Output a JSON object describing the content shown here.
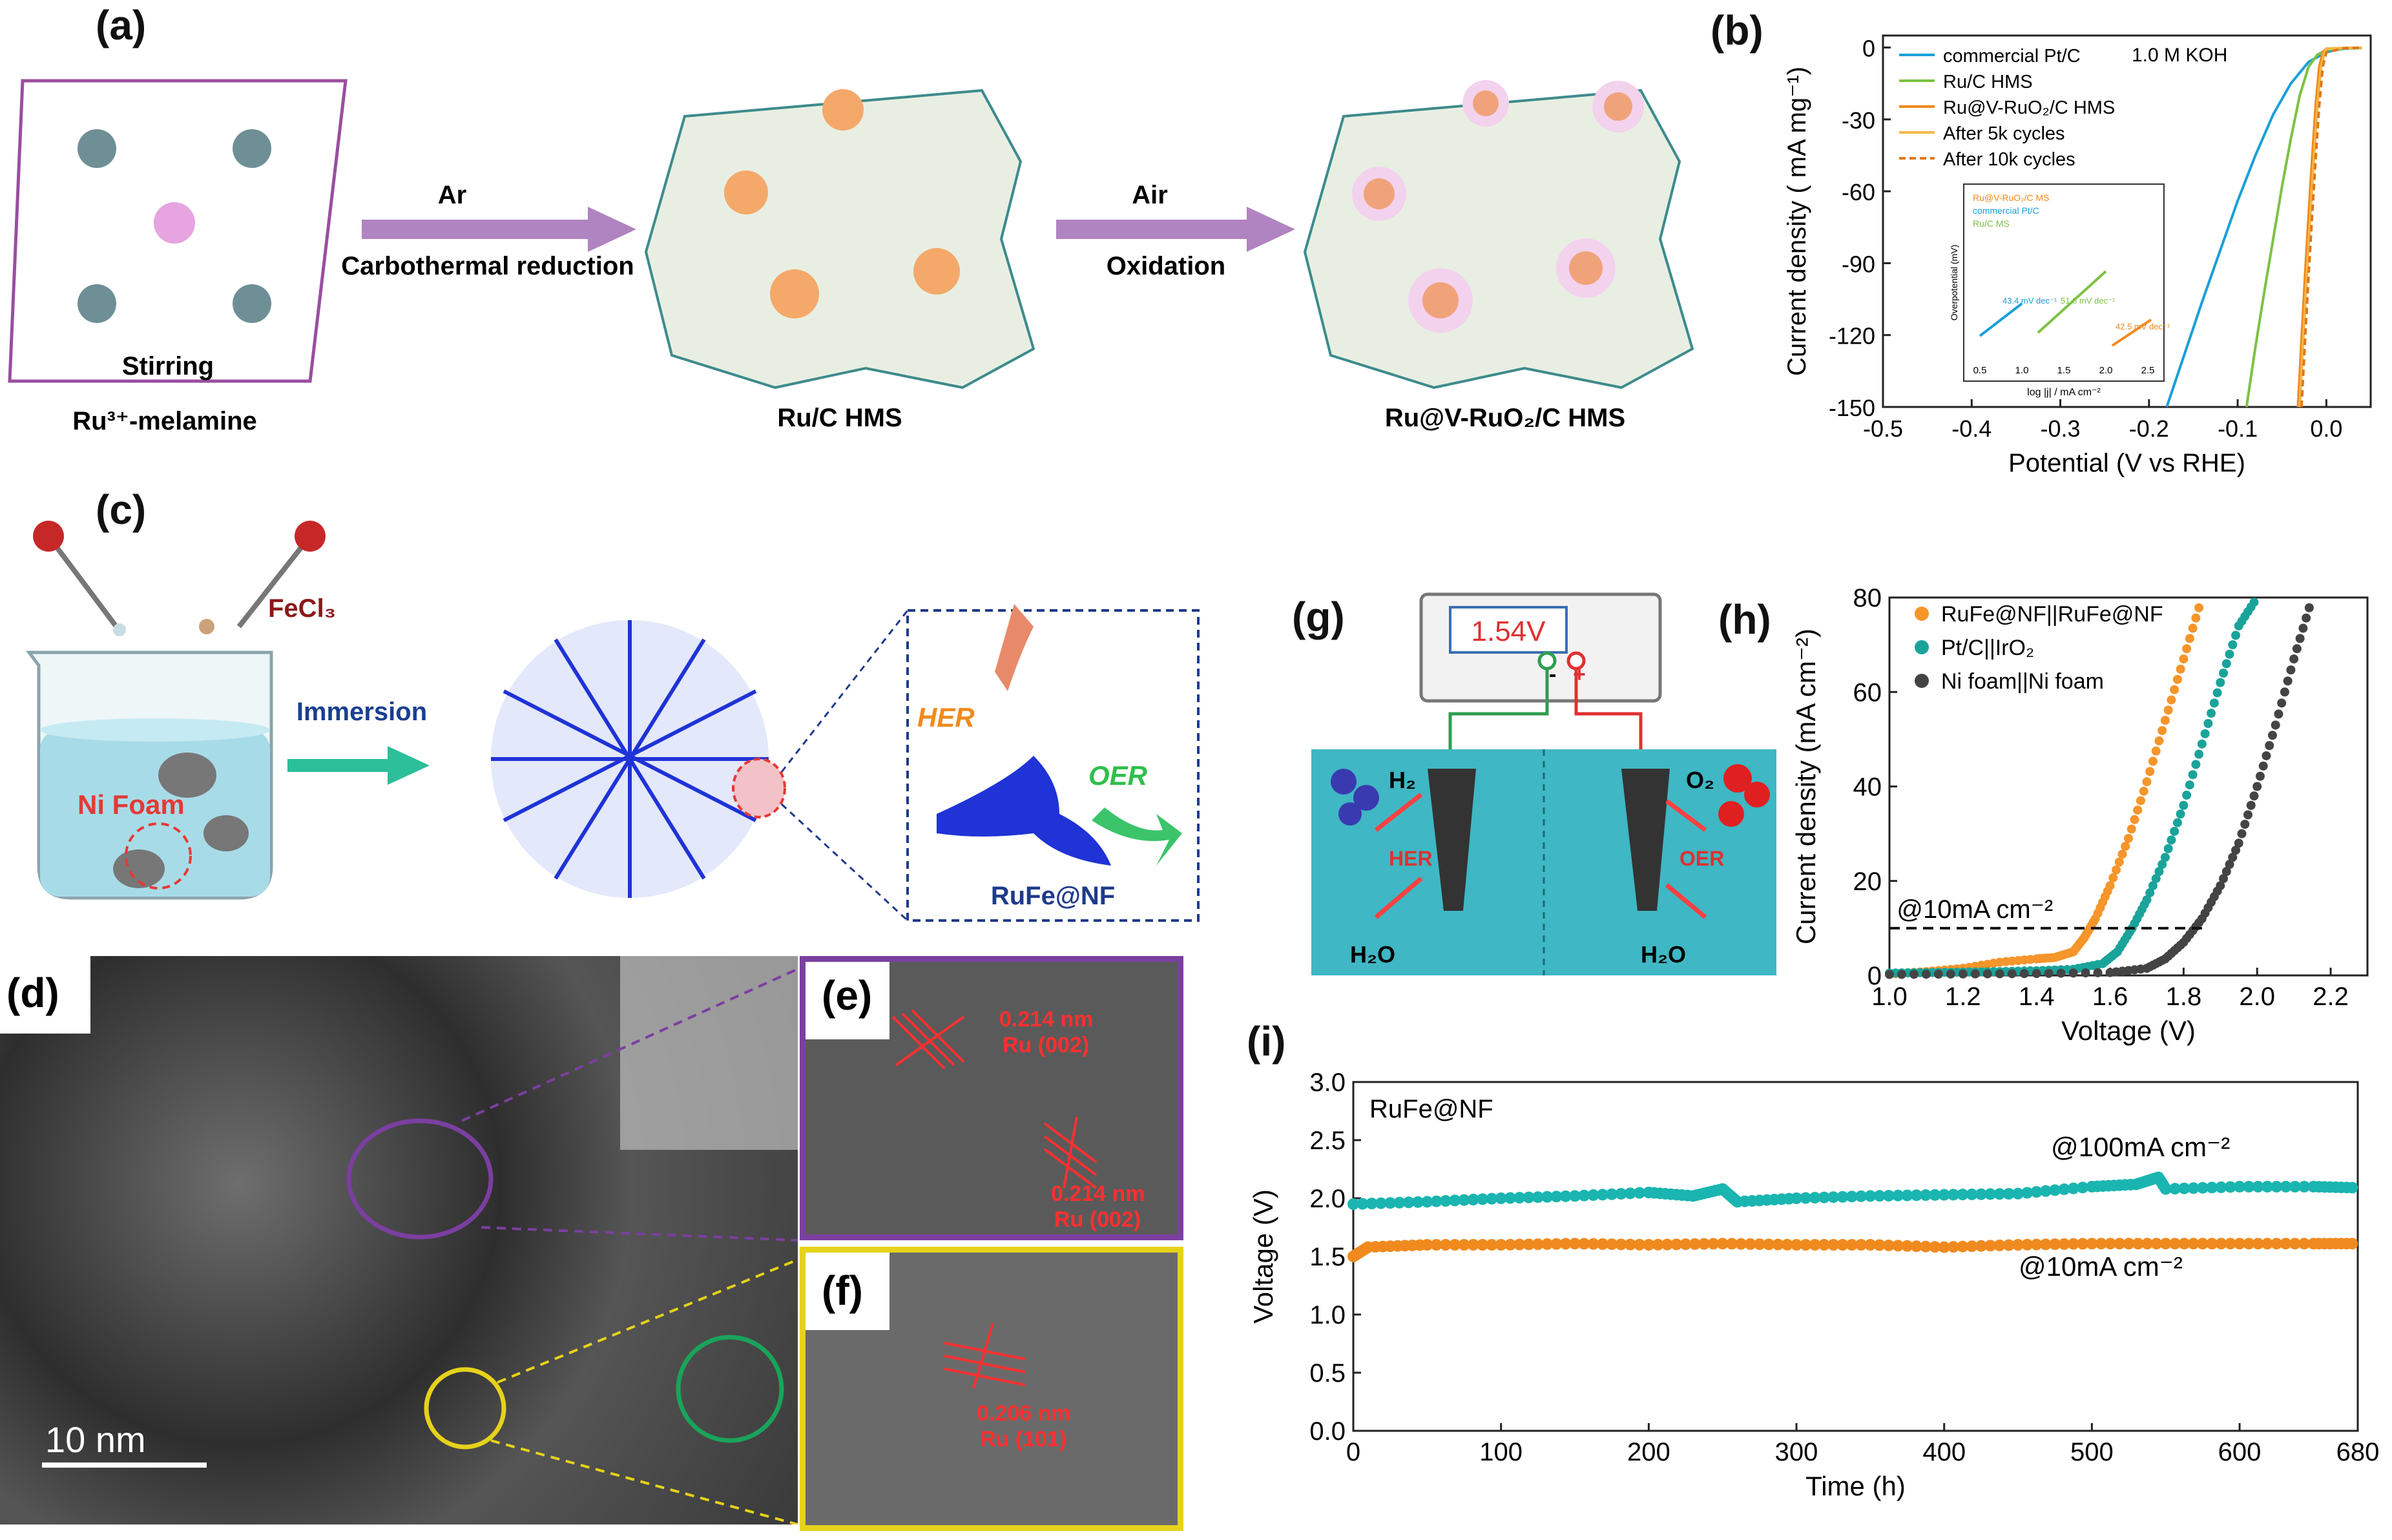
{
  "labels": {
    "a": "(a)",
    "b": "(b)",
    "c": "(c)",
    "d": "(d)",
    "e": "(e)",
    "f": "(f)",
    "g": "(g)",
    "h": "(h)",
    "i": "(i)"
  },
  "panel_a": {
    "stirring": "Stirring",
    "precursor": "Ru³⁺-melamine",
    "arrow1_top": "Ar",
    "arrow1_bottom": "Carbothermal reduction",
    "product1": "Ru/C HMS",
    "arrow2_top": "Air",
    "arrow2_bottom": "Oxidation",
    "product2": "Ru@V-RuO₂/C HMS"
  },
  "panel_c": {
    "reagent": "FeCl₃",
    "foam": "Ni Foam",
    "arrow": "Immersion",
    "her": "HER",
    "oer": "OER",
    "product": "RuFe@NF"
  },
  "panel_d": {
    "scale": "10  nm"
  },
  "panel_e": {
    "l1a": "0.214 nm",
    "l1b": "Ru (002)",
    "l2a": "0.214 nm",
    "l2b": "Ru (002)"
  },
  "panel_f": {
    "l1a": "0.206 nm",
    "l1b": "Ru (101)"
  },
  "panel_g": {
    "voltage": "1.54V",
    "minus": "-",
    "plus": "+",
    "h2": "H₂",
    "o2": "O₂",
    "her": "HER",
    "oer": "OER",
    "h2o_left": "H₂O",
    "h2o_right": "H₂O",
    "colors": {
      "water": "#3fb7c4",
      "wire_left": "#2e9e4f",
      "wire_right": "#e03030"
    }
  },
  "chart_data": [
    {
      "id": "b",
      "type": "line",
      "xlabel": "Potential (V vs RHE)",
      "ylabel": "Current density ( mA mg⁻¹)",
      "annotation": "1.0 M KOH",
      "xlim": [
        -0.5,
        0.05
      ],
      "ylim": [
        -150,
        5
      ],
      "xticks": [
        -0.5,
        -0.4,
        -0.3,
        -0.2,
        -0.1,
        0.0
      ],
      "xtick_labels": [
        "-0.5",
        "-0.4",
        "-0.3",
        "-0.2",
        "-0.1",
        "0.0"
      ],
      "yticks": [
        0,
        -30,
        -60,
        -90,
        -120,
        -150
      ],
      "ytick_labels": [
        "0",
        "-30",
        "-60",
        "-90",
        "-120",
        "-150"
      ],
      "series": [
        {
          "name": "commercial Pt/C",
          "color": "#1a9fd9",
          "x": [
            -0.18,
            -0.16,
            -0.14,
            -0.12,
            -0.1,
            -0.08,
            -0.06,
            -0.04,
            -0.02,
            0.0,
            0.01,
            0.02,
            0.04
          ],
          "y": [
            -150,
            -128,
            -106,
            -85,
            -64,
            -45,
            -28,
            -15,
            -6,
            -2,
            -1,
            -0.5,
            -0.2
          ]
        },
        {
          "name": "Ru/C HMS",
          "color": "#7cc242",
          "x": [
            -0.09,
            -0.08,
            -0.07,
            -0.06,
            -0.05,
            -0.04,
            -0.03,
            -0.02,
            -0.01,
            0.0,
            0.02,
            0.04
          ],
          "y": [
            -150,
            -125,
            -102,
            -80,
            -58,
            -38,
            -20,
            -8,
            -3,
            -1,
            -0.4,
            -0.2
          ]
        },
        {
          "name": "Ru@V-RuO₂/C HMS",
          "color": "#f08a1e",
          "x": [
            -0.032,
            -0.028,
            -0.024,
            -0.02,
            -0.016,
            -0.012,
            -0.008,
            -0.004,
            0.0,
            0.02,
            0.04
          ],
          "y": [
            -150,
            -122,
            -95,
            -70,
            -46,
            -24,
            -8,
            -2,
            -0.5,
            -0.2,
            -0.1
          ]
        },
        {
          "name": "After 5k cycles",
          "color": "#f5b84a",
          "x": [
            -0.03,
            -0.026,
            -0.022,
            -0.018,
            -0.014,
            -0.01,
            -0.006,
            -0.002,
            0.0,
            0.02,
            0.04
          ],
          "y": [
            -150,
            -122,
            -95,
            -70,
            -46,
            -24,
            -8,
            -2,
            -0.5,
            -0.2,
            -0.1
          ]
        },
        {
          "name": "After 10k cycles",
          "color": "#e0781a",
          "dashed": true,
          "x": [
            -0.028,
            -0.024,
            -0.02,
            -0.016,
            -0.012,
            -0.008,
            -0.004,
            0.0,
            0.02,
            0.04
          ],
          "y": [
            -150,
            -122,
            -95,
            -70,
            -46,
            -24,
            -8,
            -2,
            -0.3,
            -0.1
          ]
        }
      ],
      "inset": {
        "xlabel": "log |j| / mA cm⁻²",
        "ylabel": "Overpotential (mV)",
        "xticks": [
          "0.5",
          "1.0",
          "1.5",
          "2.0",
          "2.5"
        ],
        "legend": [
          "Ru@V-RuO₂/C MS",
          "commercial Pt/C",
          "Ru/C MS"
        ],
        "annotations": [
          "43.4 mV dec⁻¹",
          "51.8 mV dec⁻¹",
          "42.5 mV dec⁻¹"
        ]
      }
    },
    {
      "id": "h",
      "type": "scatter",
      "xlabel": "Voltage (V)",
      "ylabel": "Current density (mA cm⁻²)",
      "annotation": "@10mA cm⁻²",
      "xlim": [
        1.0,
        2.3
      ],
      "ylim": [
        0,
        80
      ],
      "xticks": [
        1.0,
        1.2,
        1.4,
        1.6,
        1.8,
        2.0,
        2.2
      ],
      "xtick_labels": [
        "1.0",
        "1.2",
        "1.4",
        "1.6",
        "1.8",
        "2.0",
        "2.2"
      ],
      "yticks": [
        0,
        20,
        40,
        60,
        80
      ],
      "ytick_labels": [
        "0",
        "20",
        "40",
        "60",
        "80"
      ],
      "series": [
        {
          "name": "RuFe@NF||RuFe@NF",
          "color": "#f5952a",
          "x": [
            1.0,
            1.1,
            1.2,
            1.3,
            1.4,
            1.45,
            1.5,
            1.53,
            1.56,
            1.6,
            1.65,
            1.7,
            1.75,
            1.8,
            1.85
          ],
          "y": [
            0.3,
            0.8,
            1.5,
            2.8,
            3.5,
            3.8,
            5,
            8,
            12,
            19,
            29,
            41,
            54,
            67,
            80
          ]
        },
        {
          "name": "Pt/C||IrO₂",
          "color": "#1aa39a",
          "x": [
            1.0,
            1.1,
            1.2,
            1.3,
            1.4,
            1.5,
            1.58,
            1.62,
            1.66,
            1.7,
            1.75,
            1.8,
            1.85,
            1.9,
            1.95,
            2.0
          ],
          "y": [
            0.5,
            0.6,
            0.7,
            0.8,
            1,
            1.3,
            2.5,
            5,
            10,
            16,
            25,
            36,
            49,
            62,
            74,
            80
          ]
        },
        {
          "name": "Ni foam||Ni foam",
          "color": "#444444",
          "x": [
            1.0,
            1.2,
            1.4,
            1.6,
            1.7,
            1.75,
            1.8,
            1.85,
            1.9,
            1.95,
            2.0,
            2.05,
            2.1,
            2.15
          ],
          "y": [
            0.2,
            0.3,
            0.4,
            0.6,
            1.5,
            3.5,
            7,
            12,
            19,
            28,
            40,
            53,
            67,
            80
          ]
        }
      ]
    },
    {
      "id": "i",
      "type": "scatter",
      "title": "RuFe@NF",
      "xlabel": "Time (h)",
      "ylabel": "Voltage (V)",
      "xlim": [
        0,
        680
      ],
      "ylim": [
        0,
        3.0
      ],
      "xticks": [
        0,
        100,
        200,
        300,
        400,
        500,
        600,
        680
      ],
      "xtick_labels": [
        "0",
        "100",
        "200",
        "300",
        "400",
        "500",
        "600",
        "680"
      ],
      "yticks": [
        0,
        0.5,
        1.0,
        1.5,
        2.0,
        2.5,
        3.0
      ],
      "ytick_labels": [
        "0.0",
        "0.5",
        "1.0",
        "1.5",
        "2.0",
        "2.5",
        "3.0"
      ],
      "series": [
        {
          "name": "@100mA cm⁻²",
          "color": "#1ab5b0",
          "x": [
            0,
            50,
            100,
            150,
            200,
            230,
            250,
            260,
            300,
            350,
            400,
            450,
            500,
            530,
            545,
            550,
            600,
            650,
            680
          ],
          "y": [
            1.95,
            1.97,
            2.0,
            2.02,
            2.05,
            2.02,
            2.08,
            1.97,
            2.0,
            2.02,
            2.03,
            2.04,
            2.1,
            2.12,
            2.18,
            2.08,
            2.1,
            2.1,
            2.09
          ]
        },
        {
          "name": "@10mA cm⁻²",
          "color": "#f08a1e",
          "x": [
            0,
            10,
            50,
            100,
            150,
            200,
            250,
            300,
            350,
            400,
            450,
            500,
            550,
            600,
            650,
            680
          ],
          "y": [
            1.5,
            1.58,
            1.6,
            1.6,
            1.61,
            1.6,
            1.61,
            1.6,
            1.6,
            1.58,
            1.6,
            1.61,
            1.61,
            1.61,
            1.61,
            1.61
          ]
        }
      ]
    }
  ]
}
